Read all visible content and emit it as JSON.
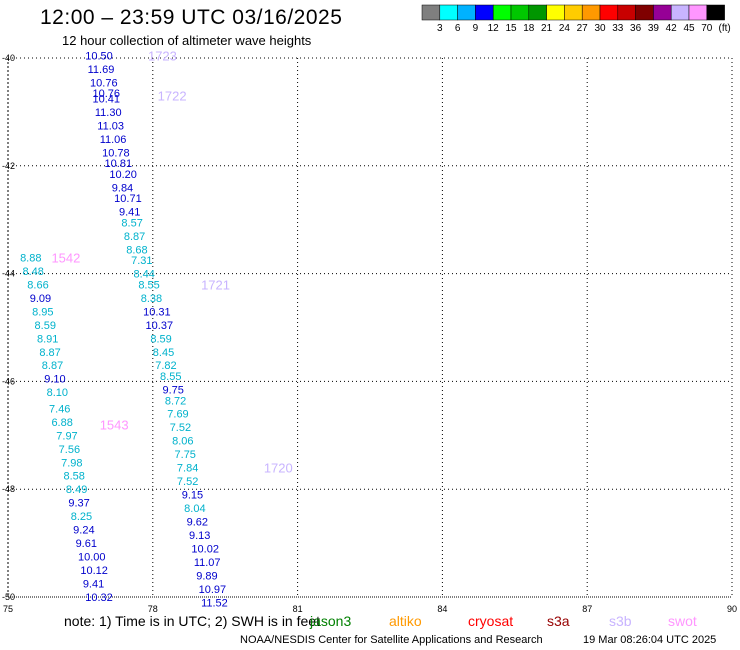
{
  "header": {
    "title": "12:00 – 23:59 UTC 03/16/2025",
    "subtitle": "12 hour collection of altimeter wave heights"
  },
  "colorbar": {
    "colors": [
      "#7f7f7f",
      "#00ffff",
      "#00b2ff",
      "#0000ff",
      "#00ff00",
      "#00c800",
      "#009600",
      "#ffff00",
      "#ffcc00",
      "#ff9900",
      "#ff0000",
      "#c80000",
      "#7f0000",
      "#960096",
      "#c8b4ff",
      "#ff96ff",
      "#000000"
    ],
    "labels": [
      "3",
      "6",
      "9",
      "12",
      "15",
      "18",
      "21",
      "24",
      "27",
      "30",
      "33",
      "36",
      "39",
      "42",
      "45",
      "70",
      "(ft)"
    ]
  },
  "footer": {
    "note": "note: 1) Time is in UTC; 2) SWH is in feet",
    "credit": "NOAA/NESDIS Center for Satellite Applications and Research",
    "timestamp": "19 Mar 08:26:04 UTC 2025"
  },
  "satellites": [
    {
      "name": "jason3",
      "color": "#008000"
    },
    {
      "name": "altiko",
      "color": "#ff9900"
    },
    {
      "name": "cryosat",
      "color": "#ff0000"
    },
    {
      "name": "s3a",
      "color": "#960000"
    },
    {
      "name": "s3b",
      "color": "#c8b4ff"
    },
    {
      "name": "swot",
      "color": "#ff96ff"
    }
  ],
  "chart_data": {
    "type": "scatter",
    "xlim": [
      75,
      90
    ],
    "ylim": [
      -50,
      -40
    ],
    "x_ticks": [
      "75",
      "78",
      "81",
      "84",
      "87",
      "90"
    ],
    "y_ticks": [
      "-40",
      "-42",
      "-44",
      "-46",
      "-48",
      "-50"
    ],
    "grid": true,
    "track_labels": [
      {
        "label": "1723",
        "lon": 77.9,
        "lat": -39.95,
        "color": "#c8b4ff"
      },
      {
        "label": "1722",
        "lon": 78.1,
        "lat": -40.7,
        "color": "#c8b4ff"
      },
      {
        "label": "1542",
        "lon": 75.9,
        "lat": -43.7,
        "color": "#ff96ff"
      },
      {
        "label": "1721",
        "lon": 79.0,
        "lat": -44.2,
        "color": "#c8b4ff"
      },
      {
        "label": "1543",
        "lon": 76.9,
        "lat": -46.8,
        "color": "#ff96ff"
      },
      {
        "label": "1720",
        "lon": 80.3,
        "lat": -47.6,
        "color": "#c8b4ff"
      }
    ],
    "series": [
      {
        "name": "1723/1722",
        "color_key": "value",
        "points": [
          {
            "lon": 76.6,
            "lat": -39.95,
            "v": "10.50"
          },
          {
            "lon": 76.65,
            "lat": -40.2,
            "v": "11.69"
          },
          {
            "lon": 76.7,
            "lat": -40.45,
            "v": "10.76"
          },
          {
            "lon": 76.75,
            "lat": -40.65,
            "v": "10.76"
          },
          {
            "lon": 76.75,
            "lat": -40.75,
            "v": "10.41"
          },
          {
            "lon": 76.8,
            "lat": -41.0,
            "v": "11.30"
          },
          {
            "lon": 76.85,
            "lat": -41.25,
            "v": "11.03"
          },
          {
            "lon": 76.9,
            "lat": -41.5,
            "v": "11.06"
          },
          {
            "lon": 76.95,
            "lat": -41.75,
            "v": "10.78"
          },
          {
            "lon": 77.0,
            "lat": -41.95,
            "v": "10.81"
          },
          {
            "lon": 77.1,
            "lat": -42.15,
            "v": "10.20"
          },
          {
            "lon": 77.15,
            "lat": -42.4,
            "v": "9.84"
          },
          {
            "lon": 77.2,
            "lat": -42.6,
            "v": "10.71"
          },
          {
            "lon": 77.3,
            "lat": -42.85,
            "v": "9.41"
          },
          {
            "lon": 77.35,
            "lat": -43.05,
            "v": "8.57"
          },
          {
            "lon": 77.4,
            "lat": -43.3,
            "v": "8.87"
          },
          {
            "lon": 77.45,
            "lat": -43.55,
            "v": "8.68"
          },
          {
            "lon": 77.55,
            "lat": -43.75,
            "v": "7.31"
          },
          {
            "lon": 77.6,
            "lat": -44.0,
            "v": "8.44"
          },
          {
            "lon": 77.7,
            "lat": -44.2,
            "v": "8.55"
          },
          {
            "lon": 77.75,
            "lat": -44.45,
            "v": "8.38"
          },
          {
            "lon": 77.8,
            "lat": -44.7,
            "v": "10.31"
          },
          {
            "lon": 77.85,
            "lat": -44.95,
            "v": "10.37"
          },
          {
            "lon": 77.95,
            "lat": -45.2,
            "v": "8.59"
          },
          {
            "lon": 78.0,
            "lat": -45.45,
            "v": "8.45"
          },
          {
            "lon": 78.05,
            "lat": -45.7,
            "v": "7.82"
          },
          {
            "lon": 78.15,
            "lat": -45.9,
            "v": "8.55"
          },
          {
            "lon": 78.2,
            "lat": -46.15,
            "v": "9.75"
          },
          {
            "lon": 78.25,
            "lat": -46.35,
            "v": "8.72"
          },
          {
            "lon": 78.3,
            "lat": -46.6,
            "v": "7.69"
          },
          {
            "lon": 78.35,
            "lat": -46.85,
            "v": "7.52"
          },
          {
            "lon": 78.4,
            "lat": -47.1,
            "v": "8.06"
          },
          {
            "lon": 78.45,
            "lat": -47.35,
            "v": "7.75"
          },
          {
            "lon": 78.5,
            "lat": -47.6,
            "v": "7.84"
          },
          {
            "lon": 78.5,
            "lat": -47.85,
            "v": "7.52"
          },
          {
            "lon": 78.6,
            "lat": -48.1,
            "v": "9.15"
          },
          {
            "lon": 78.65,
            "lat": -48.35,
            "v": "8.04"
          },
          {
            "lon": 78.7,
            "lat": -48.6,
            "v": "9.62"
          },
          {
            "lon": 78.75,
            "lat": -48.85,
            "v": "9.13"
          },
          {
            "lon": 78.8,
            "lat": -49.1,
            "v": "10.02"
          },
          {
            "lon": 78.85,
            "lat": -49.35,
            "v": "11.07"
          },
          {
            "lon": 78.9,
            "lat": -49.6,
            "v": "9.89"
          },
          {
            "lon": 78.95,
            "lat": -49.85,
            "v": "10.97"
          },
          {
            "lon": 79.0,
            "lat": -50.1,
            "v": "11.52"
          }
        ]
      },
      {
        "name": "1542/1543",
        "color_key": "value",
        "points": [
          {
            "lon": 75.25,
            "lat": -43.7,
            "v": "8.88"
          },
          {
            "lon": 75.3,
            "lat": -43.95,
            "v": "8.48"
          },
          {
            "lon": 75.4,
            "lat": -44.2,
            "v": "8.66"
          },
          {
            "lon": 75.45,
            "lat": -44.45,
            "v": "9.09"
          },
          {
            "lon": 75.5,
            "lat": -44.7,
            "v": "8.95"
          },
          {
            "lon": 75.55,
            "lat": -44.95,
            "v": "8.59"
          },
          {
            "lon": 75.6,
            "lat": -45.2,
            "v": "8.91"
          },
          {
            "lon": 75.65,
            "lat": -45.45,
            "v": "8.87"
          },
          {
            "lon": 75.7,
            "lat": -45.7,
            "v": "8.87"
          },
          {
            "lon": 75.75,
            "lat": -45.95,
            "v": "9.10"
          },
          {
            "lon": 75.8,
            "lat": -46.2,
            "v": "8.10"
          },
          {
            "lon": 75.85,
            "lat": -46.5,
            "v": "7.46"
          },
          {
            "lon": 75.9,
            "lat": -46.75,
            "v": "6.88"
          },
          {
            "lon": 76.0,
            "lat": -47.0,
            "v": "7.97"
          },
          {
            "lon": 76.05,
            "lat": -47.25,
            "v": "7.56"
          },
          {
            "lon": 76.1,
            "lat": -47.5,
            "v": "7.98"
          },
          {
            "lon": 76.15,
            "lat": -47.75,
            "v": "8.58"
          },
          {
            "lon": 76.2,
            "lat": -48.0,
            "v": "8.49"
          },
          {
            "lon": 76.25,
            "lat": -48.25,
            "v": "9.37"
          },
          {
            "lon": 76.3,
            "lat": -48.5,
            "v": "8.25"
          },
          {
            "lon": 76.35,
            "lat": -48.75,
            "v": "9.24"
          },
          {
            "lon": 76.4,
            "lat": -49.0,
            "v": "9.61"
          },
          {
            "lon": 76.45,
            "lat": -49.25,
            "v": "10.00"
          },
          {
            "lon": 76.5,
            "lat": -49.5,
            "v": "10.12"
          },
          {
            "lon": 76.55,
            "lat": -49.75,
            "v": "9.41"
          },
          {
            "lon": 76.6,
            "lat": -50.0,
            "v": "10.32"
          }
        ]
      }
    ]
  }
}
